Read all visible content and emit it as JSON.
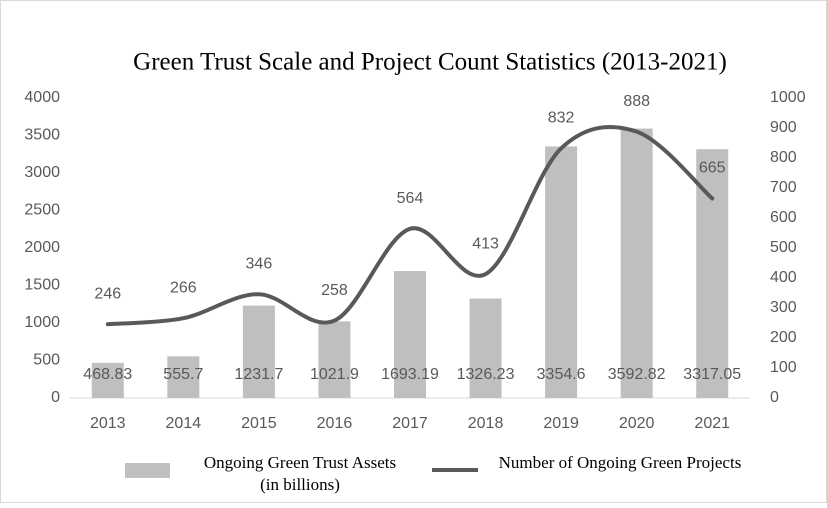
{
  "chart_data": {
    "type": "bar-line",
    "title": "Green Trust Scale and Project Count Statistics (2013-2021)",
    "categories": [
      "2013",
      "2014",
      "2015",
      "2016",
      "2017",
      "2018",
      "2019",
      "2020",
      "2021"
    ],
    "series": [
      {
        "name": "Ongoing Green Trust Assets (in billions)",
        "type": "bar",
        "color": "#bfbfbf",
        "values": [
          468.83,
          555.7,
          1231.7,
          1021.9,
          1693.19,
          1326.23,
          3354.6,
          3592.82,
          3317.05
        ]
      },
      {
        "name": "Number of Ongoing Green Projects",
        "type": "line",
        "axis": "y2",
        "color": "#595959",
        "values": [
          246,
          266,
          346,
          258,
          564,
          413,
          832,
          888,
          665
        ]
      }
    ],
    "ylim": [
      0,
      4000
    ],
    "yticks": [
      0,
      500,
      1000,
      1500,
      2000,
      2500,
      3000,
      3500,
      4000
    ],
    "y2lim": [
      0,
      1000
    ],
    "y2ticks": [
      0,
      100,
      200,
      300,
      400,
      500,
      600,
      700,
      800,
      900,
      1000
    ],
    "grid": false
  }
}
